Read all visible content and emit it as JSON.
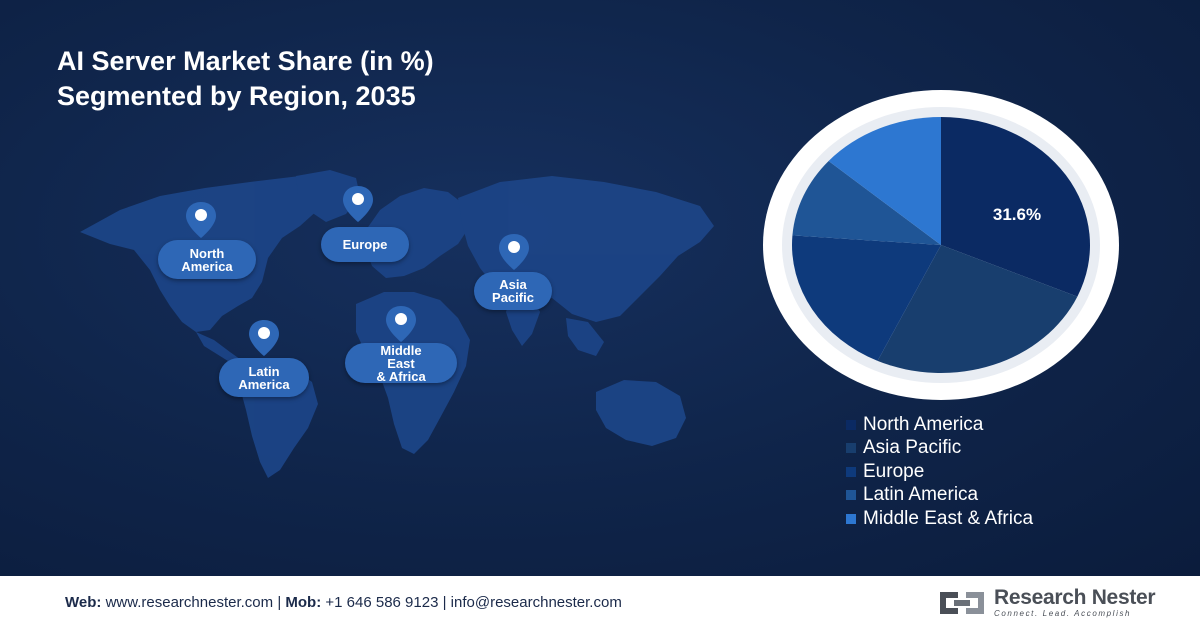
{
  "header": {
    "title_line1": "AI Server Market Share (in %)",
    "title_line2": "Segmented by Region, 2035"
  },
  "map": {
    "regions": [
      {
        "label_lines": [
          "North",
          "America"
        ]
      },
      {
        "label_lines": [
          "Europe"
        ]
      },
      {
        "label_lines": [
          "Asia",
          "Pacific"
        ]
      },
      {
        "label_lines": [
          "Latin",
          "America"
        ]
      },
      {
        "label_lines": [
          "Middle",
          "East",
          "& Africa"
        ]
      }
    ]
  },
  "chart_data": {
    "type": "pie",
    "title": "AI Server Market Share (in %) Segmented by Region, 2035",
    "slices": [
      {
        "name": "North America",
        "value": 31.6,
        "label": "31.6%",
        "color": "#0b2a63"
      },
      {
        "name": "Asia Pacific",
        "value": 25.4,
        "color": "#183e6e"
      },
      {
        "name": "Europe",
        "value": 19.2,
        "color": "#0e3a7c"
      },
      {
        "name": "Latin America",
        "value": 10.2,
        "color": "#1f5596"
      },
      {
        "name": "Middle East & Africa",
        "value": 13.6,
        "color": "#2d77d1"
      }
    ],
    "legend_position": "bottom-right"
  },
  "footer": {
    "web_label": "Web:",
    "web_value": "www.researchnester.com",
    "mob_label": "Mob:",
    "mob_value": "+1 646 586 9123",
    "email_value": "info@researchnester.com",
    "separator": "|"
  },
  "logo": {
    "name": "Research Nester",
    "tagline": "Connect. Lead. Accomplish"
  },
  "colors": {
    "background": "#0f2449",
    "badge": "#2e67b6",
    "continent": "#1f4a8f",
    "text_dark": "#1b2a4a"
  }
}
